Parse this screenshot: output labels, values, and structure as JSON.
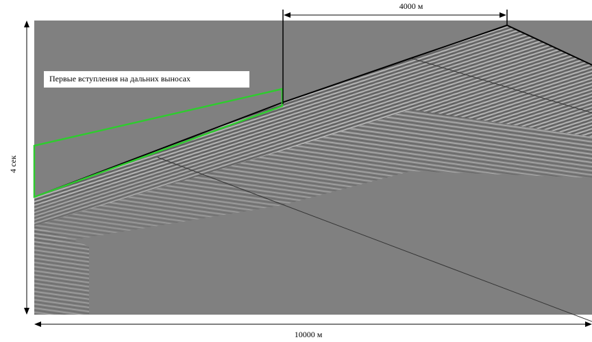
{
  "annotations": {
    "top_offset": "4000 м",
    "callout": "Первые вступления на дальних выносах",
    "time_axis": "4 сек",
    "bottom_offset": "10000 м"
  }
}
